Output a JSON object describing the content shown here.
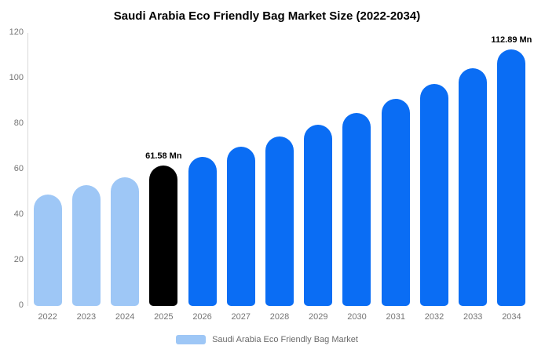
{
  "legend": {
    "label": "Saudi Arabia Eco Friendly Bag Market",
    "swatch_color": "#9ec7f6"
  },
  "colors": {
    "historical": "#9ec7f6",
    "highlight": "#000000",
    "forecast": "#0a6df4",
    "axis_text": "#757575"
  },
  "chart_data": {
    "type": "bar",
    "title": "Saudi Arabia Eco Friendly Bag Market Size (2022-2034)",
    "categories": [
      "2022",
      "2023",
      "2024",
      "2025",
      "2026",
      "2027",
      "2028",
      "2029",
      "2030",
      "2031",
      "2032",
      "2033",
      "2034"
    ],
    "values": [
      49,
      53,
      56.5,
      61.58,
      65.5,
      70,
      74.5,
      79.5,
      85,
      91,
      97.5,
      104.5,
      112.89
    ],
    "bar_colors": [
      "#9ec7f6",
      "#9ec7f6",
      "#9ec7f6",
      "#000000",
      "#0a6df4",
      "#0a6df4",
      "#0a6df4",
      "#0a6df4",
      "#0a6df4",
      "#0a6df4",
      "#0a6df4",
      "#0a6df4",
      "#0a6df4"
    ],
    "annotations": [
      {
        "index": 3,
        "category": "2025",
        "text": "61.58 Mn"
      },
      {
        "index": 12,
        "category": "2034",
        "text": "112.89 Mn"
      }
    ],
    "xlabel": "",
    "ylabel": "",
    "ylim": [
      0,
      120
    ],
    "yticks": [
      0,
      20,
      40,
      60,
      80,
      100,
      120
    ],
    "grid": false,
    "legend_position": "bottom"
  }
}
